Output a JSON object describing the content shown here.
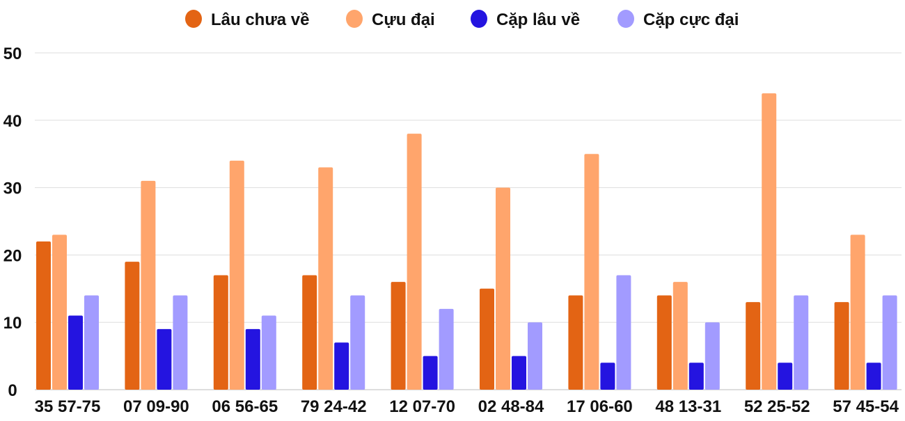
{
  "chart_data": {
    "type": "bar",
    "title": "",
    "xlabel": "",
    "ylabel": "",
    "ylim": [
      0,
      50
    ],
    "yticks": [
      0,
      10,
      20,
      30,
      40,
      50
    ],
    "grid": true,
    "legend_position": "top-center",
    "categories": [
      "35 57-75",
      "07 09-90",
      "06 56-65",
      "79 24-42",
      "12 07-70",
      "02 48-84",
      "17 06-60",
      "48 13-31",
      "52 25-52",
      "57 45-54"
    ],
    "series": [
      {
        "name": "Lâu chưa về",
        "color": "#e36414",
        "values": [
          22,
          19,
          17,
          17,
          16,
          15,
          14,
          14,
          13,
          13
        ]
      },
      {
        "name": "Cựu đại",
        "color": "#ffa56c",
        "values": [
          23,
          31,
          34,
          33,
          38,
          30,
          35,
          16,
          44,
          23
        ]
      },
      {
        "name": "Cặp lâu về",
        "color": "#2414e0",
        "values": [
          11,
          9,
          9,
          7,
          5,
          5,
          4,
          4,
          4,
          4
        ]
      },
      {
        "name": "Cặp cực đại",
        "color": "#a29bff",
        "values": [
          14,
          14,
          11,
          14,
          12,
          10,
          17,
          10,
          14,
          14
        ]
      }
    ]
  }
}
